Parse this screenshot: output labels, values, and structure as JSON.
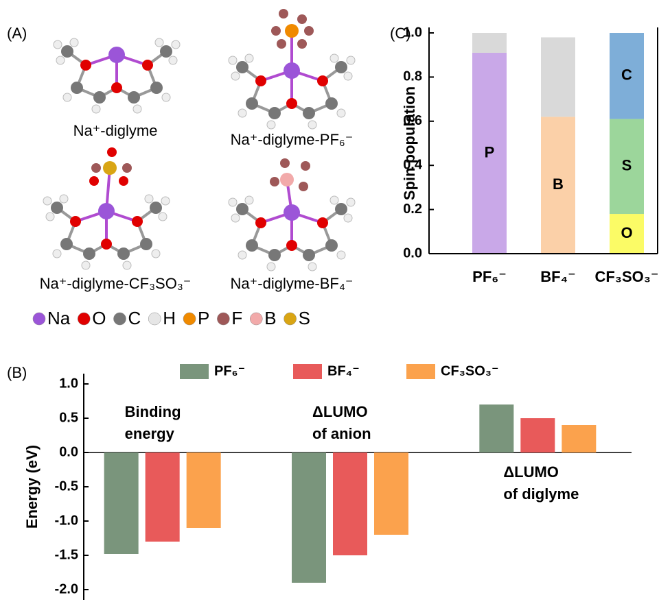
{
  "panel_a": {
    "label": "(A)",
    "molecules": [
      "Na⁺-diglyme",
      "Na⁺-diglyme-PF₆⁻",
      "Na⁺-diglyme-CF₃SO₃⁻",
      "Na⁺-diglyme-BF₄⁻"
    ],
    "atom_legend": [
      {
        "symbol": "Na",
        "color": "#9b55d8"
      },
      {
        "symbol": "O",
        "color": "#e00000"
      },
      {
        "symbol": "C",
        "color": "#777777"
      },
      {
        "symbol": "H",
        "color": "#e6e6e6"
      },
      {
        "symbol": "P",
        "color": "#f08a00"
      },
      {
        "symbol": "F",
        "color": "#9e5858"
      },
      {
        "symbol": "B",
        "color": "#f2aaaa"
      },
      {
        "symbol": "S",
        "color": "#d9a514"
      }
    ]
  },
  "chart_data": [
    {
      "type": "bar",
      "label": "(B)",
      "y_label": "Energy (eV)",
      "categories": [
        "Binding energy",
        "ΔLUMO of anion",
        "ΔLUMO of diglyme"
      ],
      "series": [
        {
          "name": "PF₆⁻",
          "color": "#7a957c",
          "values": [
            -1.48,
            -1.9,
            0.7
          ]
        },
        {
          "name": "BF₄⁻",
          "color": "#e85a5a",
          "values": [
            -1.3,
            -1.5,
            0.5
          ]
        },
        {
          "name": "CF₃SO₃⁻",
          "color": "#fba24d",
          "values": [
            -1.1,
            -1.2,
            0.4
          ]
        }
      ],
      "ylim": [
        -2.15,
        1.15
      ],
      "yticks": [
        {
          "value": 1,
          "label": "1.0"
        },
        {
          "value": 0.5,
          "label": "0.5"
        },
        {
          "value": 0,
          "label": "0.0"
        },
        {
          "value": -0.5,
          "label": "-0.5"
        },
        {
          "value": -1,
          "label": "-1.0"
        },
        {
          "value": -1.5,
          "label": "-1.5"
        },
        {
          "value": -2,
          "label": "-2.0"
        }
      ]
    },
    {
      "type": "stacked_bar",
      "label": "(C)",
      "y_label": "Spin population",
      "categories": [
        "PF₆⁻",
        "BF₄⁻",
        "CF₃SO₃⁻"
      ],
      "series": [
        {
          "name": "O",
          "color": "#fbfb66",
          "values": [
            null,
            null,
            0.18
          ]
        },
        {
          "name": "S",
          "color": "#9cd69b",
          "values": [
            null,
            null,
            0.43
          ]
        },
        {
          "name": "C",
          "color": "#7eaed8",
          "values": [
            null,
            null,
            0.39
          ]
        },
        {
          "name": "P",
          "color": "#c9a8e8",
          "values": [
            0.91,
            null,
            null
          ]
        },
        {
          "name": "B",
          "color": "#fbd0a8",
          "values": [
            null,
            0.62,
            null
          ]
        },
        {
          "color": "#d9d9d9",
          "values": [
            0.09,
            0.36,
            null
          ]
        }
      ],
      "ylim": [
        0,
        1
      ],
      "yticks": [
        {
          "value": 0,
          "label": "0.0"
        },
        {
          "value": 0.2,
          "label": "0.2"
        },
        {
          "value": 0.4,
          "label": "0.4"
        },
        {
          "value": 0.6,
          "label": "0.6"
        },
        {
          "value": 0.8,
          "label": "0.8"
        },
        {
          "value": 1,
          "label": "1.0"
        }
      ]
    }
  ]
}
